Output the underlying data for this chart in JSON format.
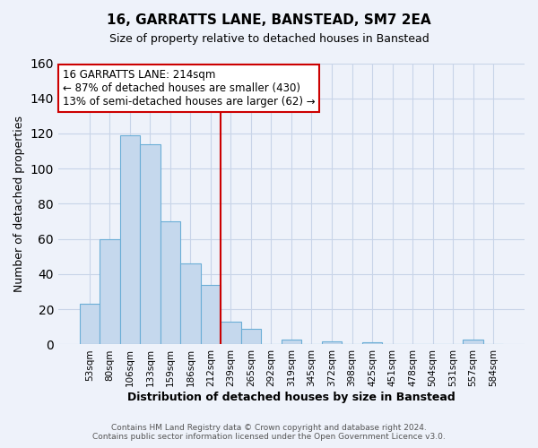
{
  "title": "16, GARRATTS LANE, BANSTEAD, SM7 2EA",
  "subtitle": "Size of property relative to detached houses in Banstead",
  "xlabel": "Distribution of detached houses by size in Banstead",
  "ylabel": "Number of detached properties",
  "bar_labels": [
    "53sqm",
    "80sqm",
    "106sqm",
    "133sqm",
    "159sqm",
    "186sqm",
    "212sqm",
    "239sqm",
    "265sqm",
    "292sqm",
    "319sqm",
    "345sqm",
    "372sqm",
    "398sqm",
    "425sqm",
    "451sqm",
    "478sqm",
    "504sqm",
    "531sqm",
    "557sqm",
    "584sqm"
  ],
  "bar_values": [
    23,
    60,
    119,
    114,
    70,
    46,
    34,
    13,
    9,
    0,
    3,
    0,
    2,
    0,
    1,
    0,
    0,
    0,
    0,
    3,
    0
  ],
  "bar_color": "#c5d8ed",
  "bar_edgecolor": "#6baed6",
  "ylim": [
    0,
    160
  ],
  "yticks": [
    0,
    20,
    40,
    60,
    80,
    100,
    120,
    140,
    160
  ],
  "property_line_idx": 6,
  "property_line_color": "#cc0000",
  "ann_line1": "16 GARRATTS LANE: 214sqm",
  "ann_line2": "← 87% of detached houses are smaller (430)",
  "ann_line3": "13% of semi-detached houses are larger (62) →",
  "annotation_box_color": "#cc0000",
  "annotation_box_facecolor": "#ffffff",
  "footer_line1": "Contains HM Land Registry data © Crown copyright and database right 2024.",
  "footer_line2": "Contains public sector information licensed under the Open Government Licence v3.0.",
  "grid_color": "#c8d4e8",
  "background_color": "#eef2fa",
  "title_fontsize": 11,
  "subtitle_fontsize": 9
}
